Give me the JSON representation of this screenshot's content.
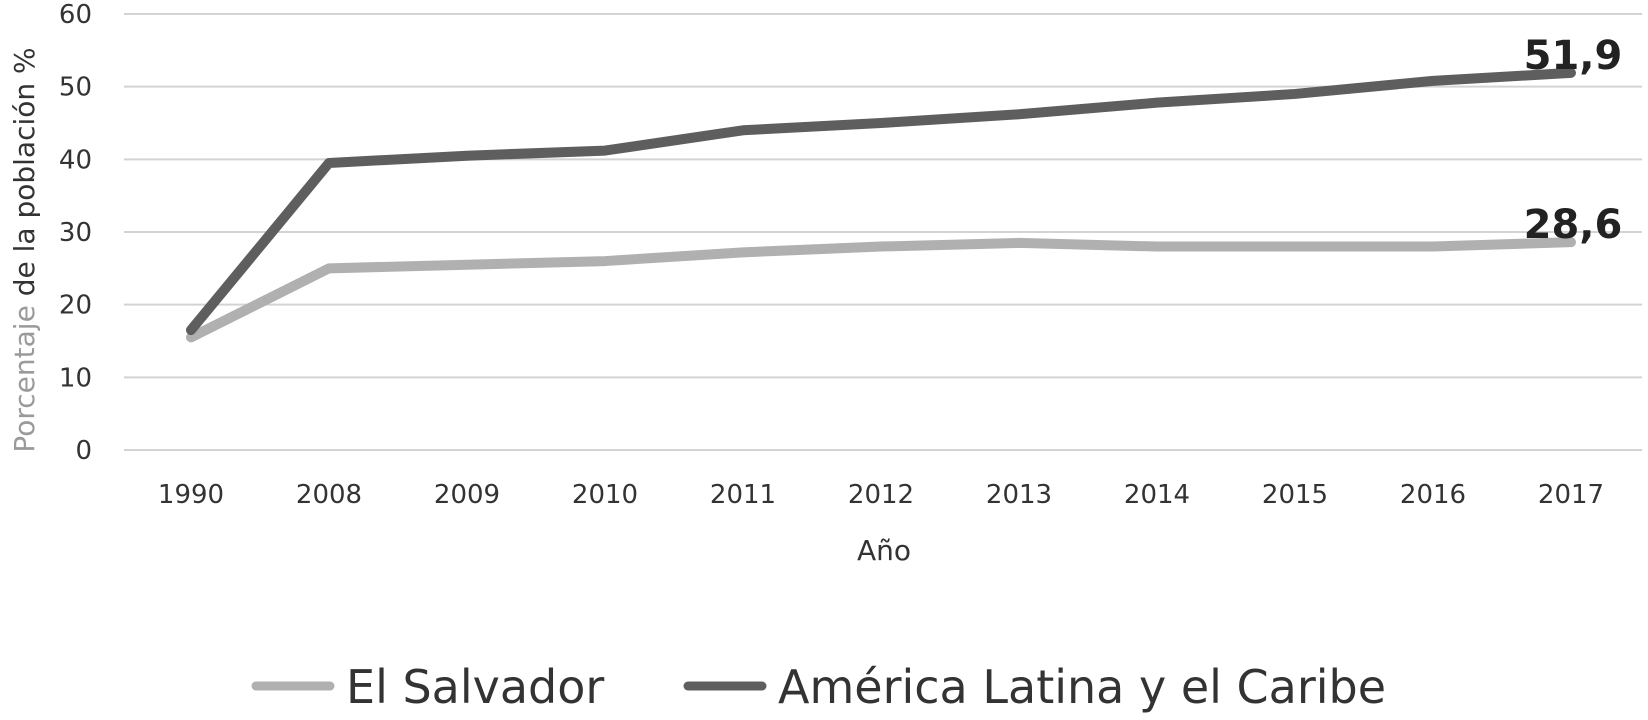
{
  "chart_data": {
    "type": "line",
    "xlabel": "Año",
    "ylabel_prefix": "Porcentaje",
    "ylabel_suffix": " de la población %",
    "categories": [
      "1990",
      "2008",
      "2009",
      "2010",
      "2011",
      "2012",
      "2013",
      "2014",
      "2015",
      "2016",
      "2017"
    ],
    "y_ticks": [
      "0",
      "10",
      "20",
      "30",
      "40",
      "50",
      "60"
    ],
    "ylim": [
      0,
      60
    ],
    "grid": true,
    "legend_position": "bottom",
    "series": [
      {
        "name": "El Salvador",
        "color": "#b0b0b0",
        "values": [
          15.5,
          25,
          25.5,
          26,
          27.2,
          28,
          28.5,
          28,
          28,
          28,
          28.6
        ],
        "end_label": "28,6"
      },
      {
        "name": "América Latina y el Caribe",
        "color": "#5e5e5e",
        "values": [
          16.5,
          39.5,
          40.5,
          41.2,
          44,
          45,
          46.2,
          47.8,
          49,
          50.8,
          51.9
        ],
        "end_label": "51,9"
      }
    ]
  }
}
